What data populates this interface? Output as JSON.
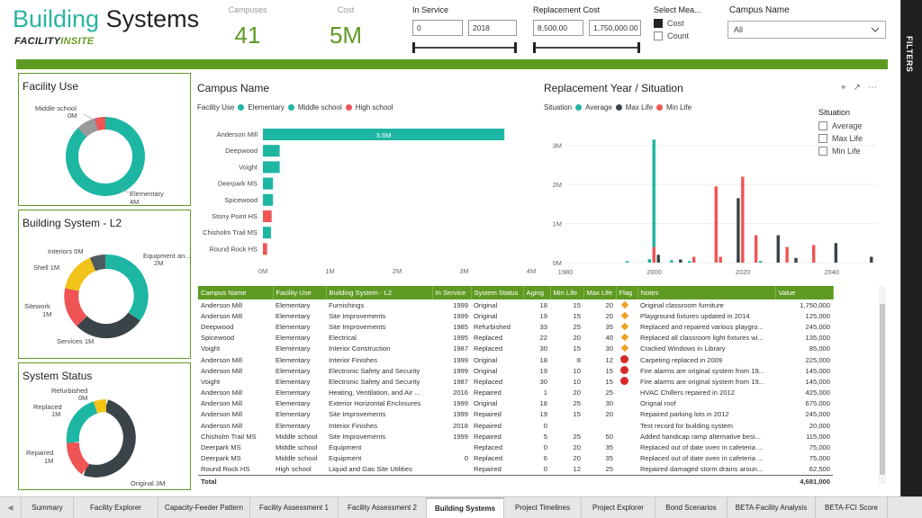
{
  "header": {
    "title_part1": "Building",
    "title_part2": " Systems",
    "logo_part1": "FACILITY",
    "logo_part2": "INSITE"
  },
  "kpis": {
    "campuses_label": "Campuses",
    "campuses_value": "41",
    "cost_label": "Cost",
    "cost_value": "5M"
  },
  "slicers": {
    "in_service": {
      "label": "In Service",
      "min": "0",
      "max": "2018"
    },
    "replacement_cost": {
      "label": "Replacement Cost",
      "min": "8,500.00",
      "max": "1,750,000.00"
    },
    "select_measure": {
      "label": "Select Mea...",
      "options": [
        {
          "label": "Cost",
          "checked": true
        },
        {
          "label": "Count",
          "checked": false
        }
      ]
    },
    "campus_name": {
      "label": "Campus Name",
      "value": "All"
    }
  },
  "filters_pane": {
    "label": "FILTERS"
  },
  "colors": {
    "teal": "#1db6a3",
    "dark": "#3a4448",
    "red": "#f05454",
    "yellow": "#f2c319",
    "gray": "#888888",
    "green": "#5f9b23"
  },
  "donuts": {
    "facility_use": {
      "title": "Facility Use",
      "labels": [
        "Middle school",
        "0M",
        "Elementary",
        "4M"
      ]
    },
    "building_system": {
      "title": "Building System - L2",
      "labels": [
        "Interiors 0M",
        "Equipment an...",
        "2M",
        "Shell 1M",
        "Sitework",
        "1M",
        "Services 1M"
      ]
    },
    "system_status": {
      "title": "System Status",
      "labels": [
        "Refurbished",
        "0M",
        "Replaced",
        "1M",
        "Repaired",
        "1M",
        "Original 3M"
      ]
    }
  },
  "chart_data": [
    {
      "type": "bar",
      "orientation": "horizontal",
      "title": "Campus Name",
      "legend_title": "Facility Use",
      "legend": [
        "Elementary",
        "Middle school",
        "High school"
      ],
      "categories": [
        "Anderson Mill",
        "Deepwood",
        "Voight",
        "Deerpark MS",
        "Spicewood",
        "Stony Point HS",
        "Chisholm Trail MS",
        "Round Rock HS"
      ],
      "values": [
        3600000,
        250000,
        250000,
        150000,
        150000,
        130000,
        120000,
        62500
      ],
      "series_of_category": [
        "Elementary",
        "Elementary",
        "Elementary",
        "Middle school",
        "Elementary",
        "High school",
        "Middle school",
        "High school"
      ],
      "data_labels": [
        "3.6M"
      ],
      "xticks": [
        "0M",
        "1M",
        "2M",
        "3M",
        "4M"
      ],
      "xlim": [
        0,
        4000000
      ]
    },
    {
      "type": "bar",
      "title": "Replacement Year / Situation",
      "legend_title": "Situation",
      "legend": [
        "Average",
        "Max Life",
        "Min Life"
      ],
      "xlim": [
        1980,
        2050
      ],
      "ylim": [
        0,
        3500000
      ],
      "xticks": [
        "1980",
        "2000",
        "2020",
        "2040"
      ],
      "yticks": [
        "0M",
        "1M",
        "2M",
        "3M"
      ],
      "series": [
        {
          "name": "Average",
          "points": [
            [
              1994,
              40000
            ],
            [
              1999,
              90000
            ],
            [
              2000,
              3150000
            ],
            [
              2001,
              130000
            ],
            [
              2004,
              60000
            ],
            [
              2008,
              40000
            ],
            [
              2019,
              100000
            ],
            [
              2024,
              40000
            ]
          ]
        },
        {
          "name": "Max Life",
          "points": [
            [
              2001,
              200000
            ],
            [
              2006,
              80000
            ],
            [
              2019,
              1650000
            ],
            [
              2020,
              100000
            ],
            [
              2028,
              700000
            ],
            [
              2032,
              120000
            ],
            [
              2041,
              500000
            ],
            [
              2049,
              150000
            ]
          ]
        },
        {
          "name": "Min Life",
          "points": [
            [
              2000,
              400000
            ],
            [
              2009,
              150000
            ],
            [
              2014,
              1950000
            ],
            [
              2015,
              150000
            ],
            [
              2020,
              2200000
            ],
            [
              2023,
              700000
            ],
            [
              2030,
              400000
            ],
            [
              2036,
              450000
            ]
          ]
        }
      ]
    }
  ],
  "slicer_situation": {
    "title": "Situation",
    "options": [
      "Average",
      "Max Life",
      "Min Life"
    ]
  },
  "table": {
    "columns": [
      "Campus Name",
      "Facility Use",
      "Building System - L2",
      "In Service",
      "System Status",
      "Aging",
      "Min Life",
      "Max Life",
      "Flag",
      "Notes",
      "Value"
    ],
    "rows": [
      [
        "Anderson Mill",
        "Elementary",
        "Furnishings",
        "1999",
        "Original",
        "18",
        "15",
        "20",
        "diamond",
        "Original classroom furniture",
        "1,750,000"
      ],
      [
        "Anderson Mill",
        "Elementary",
        "Site Improvements",
        "1999",
        "Original",
        "19",
        "15",
        "20",
        "diamond",
        "Playground fixtures updated in 2014",
        "125,000"
      ],
      [
        "Deepwood",
        "Elementary",
        "Site Improvements",
        "1985",
        "Refurbished",
        "33",
        "25",
        "35",
        "diamond",
        "Replaced and repaired various playgro...",
        "245,000"
      ],
      [
        "Spicewood",
        "Elementary",
        "Electrical",
        "1995",
        "Replaced",
        "22",
        "20",
        "40",
        "diamond",
        "Replaced all classroom light fixtures wi...",
        "135,000"
      ],
      [
        "Voight",
        "Elementary",
        "Interior Construction",
        "1987",
        "Replaced",
        "30",
        "15",
        "30",
        "diamond",
        "Cracked Windows in Library",
        "85,000"
      ],
      [
        "Anderson Mill",
        "Elementary",
        "Interior Finishes",
        "1999",
        "Original",
        "18",
        "8",
        "12",
        "circle",
        "Carpeting replaced in 2009",
        "225,000"
      ],
      [
        "Anderson Mill",
        "Elementary",
        "Electronic Safety and Security",
        "1999",
        "Original",
        "19",
        "10",
        "15",
        "circle",
        "Fire alarms are original system from 19...",
        "145,000"
      ],
      [
        "Voight",
        "Elementary",
        "Electronic Safety and Security",
        "1987",
        "Replaced",
        "30",
        "10",
        "15",
        "circle",
        "Fire alarms are original system from 19...",
        "145,000"
      ],
      [
        "Anderson Mill",
        "Elementary",
        "Heating, Ventilation, and Air ...",
        "2016",
        "Repaired",
        "1",
        "20",
        "25",
        "",
        "HVAC Chillers repaired in 2012",
        "425,000"
      ],
      [
        "Anderson Mill",
        "Elementary",
        "Exterior Horizontal Enclosures",
        "1999",
        "Original",
        "18",
        "25",
        "30",
        "",
        "Orignal roof",
        "675,000"
      ],
      [
        "Anderson Mill",
        "Elementary",
        "Site Improvements",
        "1999",
        "Repaired",
        "19",
        "15",
        "20",
        "",
        "Repaired parking lots in 2012",
        "245,000"
      ],
      [
        "Anderson Mill",
        "Elementary",
        "Interior Finishes",
        "2018",
        "Repaired",
        "0",
        "",
        "",
        "",
        "Test record for building system",
        "20,000"
      ],
      [
        "Chisholm Trail MS",
        "Middle school",
        "Site Improvements",
        "1999",
        "Repaired",
        "5",
        "25",
        "50",
        "",
        "Added handicap ramp alternative besi...",
        "115,000"
      ],
      [
        "Deerpark MS",
        "Middle school",
        "Equipment",
        "",
        "Replaced",
        "0",
        "20",
        "35",
        "",
        "Replaced out of date oven in cafeteria ...",
        "75,000"
      ],
      [
        "Deerpark MS",
        "Middle school",
        "Equipment",
        "0",
        "Replaced",
        "6",
        "20",
        "35",
        "",
        "Replaced out of date oven in cafeteria ...",
        "75,000"
      ],
      [
        "Round Rock HS",
        "High school",
        "Liquid and Gas Site Utilities",
        "",
        "Repaired",
        "0",
        "12",
        "25",
        "",
        "Repaired damaged storm drains aroun...",
        "62,500"
      ]
    ],
    "total_label": "Total",
    "total_value": "4,681,000"
  },
  "tabs": [
    "Summary",
    "Facility Explorer",
    "Capacity-Feeder Pattern",
    "Facility Assessment 1",
    "Facility Assessment 2",
    "Building Systems",
    "Project Timelines",
    "Project Explorer",
    "Bond Scenarios",
    "BETA-Facility Analysis",
    "BETA-FCI Score"
  ],
  "active_tab": "Building Systems"
}
